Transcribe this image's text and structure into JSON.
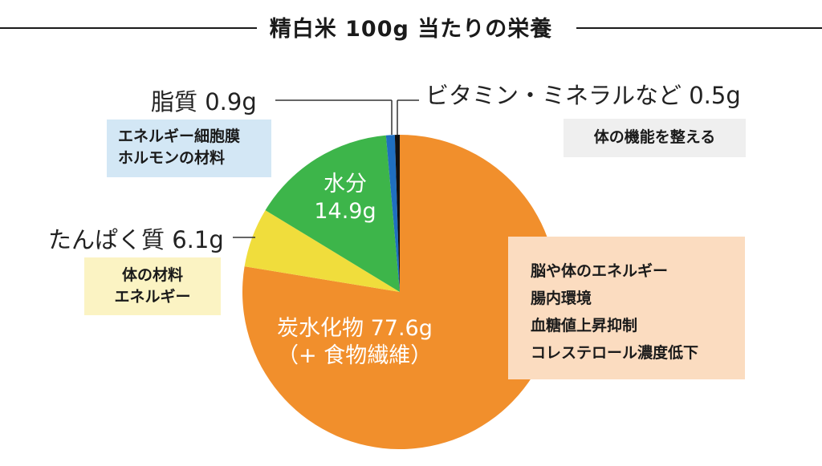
{
  "title": "精白米 100g 当たりの栄養",
  "chart_data": {
    "type": "pie",
    "title": "精白米 100g 当たりの栄養",
    "unit": "g",
    "start": "12 o'clock, clockwise",
    "slices": [
      {
        "name": "炭水化物",
        "value": 77.6,
        "color": "#f18f2c"
      },
      {
        "name": "たんぱく質",
        "value": 6.1,
        "color": "#f0dd3c"
      },
      {
        "name": "水分",
        "value": 14.9,
        "color": "#3db54a"
      },
      {
        "name": "脂質",
        "value": 0.9,
        "color": "#1f6fc0"
      },
      {
        "name": "ビタミン・ミネラルなど",
        "value": 0.5,
        "color": "#111111"
      }
    ]
  },
  "labels": {
    "fat": "脂質 0.9g",
    "vitamin": "ビタミン・ミネラルなど 0.5g",
    "protein": "たんぱく質 6.1g",
    "water_name": "水分",
    "water_value": "14.9g",
    "carb_line1": "炭水化物 77.6g",
    "carb_line2": "（+ 食物繊維）"
  },
  "boxes": {
    "fat": {
      "lines": [
        "エネルギー細胞膜",
        "ホルモンの材料"
      ],
      "color": "#d3e7f5"
    },
    "vitamin": {
      "lines": [
        "体の機能を整える"
      ],
      "color": "#efefef"
    },
    "protein": {
      "lines": [
        "体の材料",
        "エネルギー"
      ],
      "color": "#fbf3c3"
    },
    "carb": {
      "lines": [
        "脳や体のエネルギー",
        "腸内環境",
        "血糖値上昇抑制",
        "コレステロール濃度低下"
      ],
      "color": "#fbdcc0"
    }
  }
}
